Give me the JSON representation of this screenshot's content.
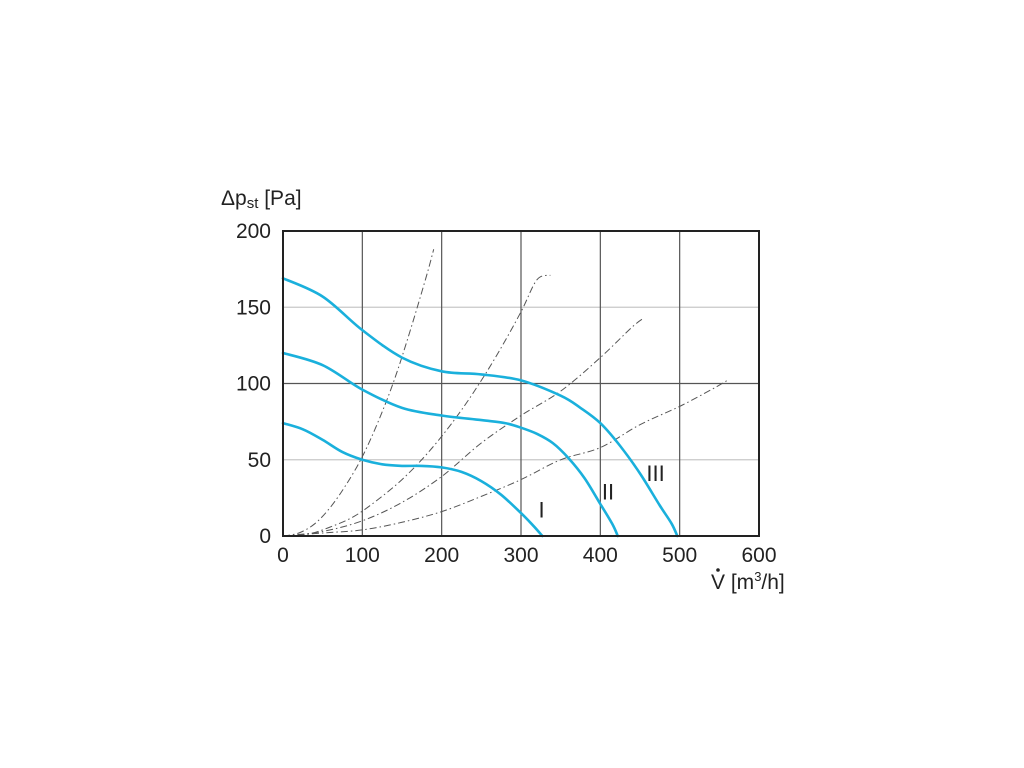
{
  "chart_data": {
    "type": "line",
    "ylabel": {
      "main": "Δp",
      "sub": "st",
      "unit": " [Pa]"
    },
    "xlabel": {
      "main": "V",
      "unit_pre": " [m",
      "sup": "3",
      "unit_post": "/h]"
    },
    "xlim": [
      0,
      600
    ],
    "ylim": [
      0,
      200
    ],
    "xticks": [
      0,
      100,
      200,
      300,
      400,
      500,
      600
    ],
    "yticks": [
      0,
      50,
      100,
      150,
      200
    ],
    "major_grid": {
      "x": [
        100,
        200,
        300,
        400,
        500
      ],
      "y": [
        100
      ]
    },
    "minor_grid": {
      "y": [
        50,
        150
      ]
    },
    "grid": true,
    "colors": {
      "fan_curve": "#1ab0dc",
      "system_curve": "#555555",
      "grid_major": "#555555",
      "grid_minor": "#c8c8c8",
      "frame": "#222222"
    },
    "series": [
      {
        "name": "I",
        "x": [
          0,
          25,
          50,
          75,
          100,
          125,
          150,
          175,
          200,
          225,
          250,
          275,
          300,
          315,
          327
        ],
        "y": [
          74,
          70,
          63,
          55,
          50,
          47,
          46,
          46,
          45,
          42,
          36,
          27,
          15,
          7,
          0
        ],
        "label_at": [
          322,
          12
        ]
      },
      {
        "name": "II",
        "x": [
          0,
          50,
          100,
          150,
          200,
          250,
          280,
          300,
          320,
          340,
          360,
          380,
          400,
          415,
          422
        ],
        "y": [
          120,
          112,
          96,
          84,
          79,
          76,
          74,
          71,
          67,
          61,
          51,
          38,
          21,
          8,
          0
        ],
        "label_at": [
          402,
          24
        ]
      },
      {
        "name": "III",
        "x": [
          0,
          50,
          100,
          150,
          200,
          250,
          300,
          350,
          375,
          400,
          425,
          450,
          475,
          490,
          497
        ],
        "y": [
          169,
          157,
          135,
          117,
          108,
          106,
          102,
          92,
          84,
          74,
          59,
          41,
          20,
          8,
          0
        ],
        "label_at": [
          458,
          36
        ]
      }
    ],
    "system_curves": [
      {
        "x": [
          0,
          20,
          40,
          60,
          80,
          100,
          120,
          140,
          160,
          180,
          190
        ],
        "y": [
          0,
          2,
          8,
          19,
          34,
          52,
          75,
          102,
          134,
          169,
          188
        ]
      },
      {
        "x": [
          0,
          30,
          60,
          90,
          120,
          150,
          180,
          210,
          240,
          270,
          300,
          320,
          337
        ],
        "y": [
          0,
          1,
          6,
          13,
          24,
          37,
          53,
          72,
          94,
          119,
          147,
          168,
          171
        ]
      },
      {
        "x": [
          0,
          50,
          100,
          150,
          200,
          250,
          300,
          350,
          400,
          440,
          455
        ],
        "y": [
          0,
          3,
          10,
          22,
          39,
          61,
          79,
          95,
          117,
          137,
          143
        ]
      },
      {
        "x": [
          0,
          50,
          100,
          150,
          200,
          250,
          300,
          350,
          400,
          450,
          500,
          540,
          560
        ],
        "y": [
          0,
          2,
          4,
          9,
          16,
          26,
          37,
          50,
          58,
          73,
          85,
          96,
          102
        ]
      }
    ]
  }
}
